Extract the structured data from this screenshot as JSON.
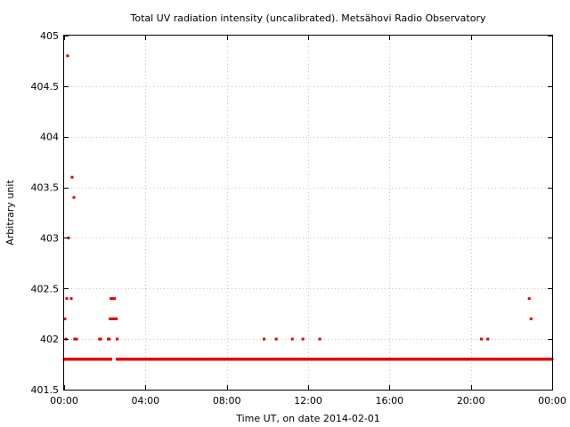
{
  "chart_data": {
    "type": "scatter",
    "title": "Total UV radiation intensity (uncalibrated). Metsähovi Radio Observatory",
    "xlabel": "Time UT, on date 2014-02-01",
    "ylabel": "Arbitrary unit",
    "xlim": [
      0,
      24
    ],
    "ylim": [
      401.5,
      405
    ],
    "xticks": [
      {
        "value": 0,
        "label": "00:00"
      },
      {
        "value": 4,
        "label": "04:00"
      },
      {
        "value": 8,
        "label": "08:00"
      },
      {
        "value": 12,
        "label": "12:00"
      },
      {
        "value": 16,
        "label": "16:00"
      },
      {
        "value": 20,
        "label": "20:00"
      },
      {
        "value": 24,
        "label": "00:00"
      }
    ],
    "yticks": [
      {
        "value": 401.5,
        "label": "401.5"
      },
      {
        "value": 402,
        "label": "402"
      },
      {
        "value": 402.5,
        "label": "402.5"
      },
      {
        "value": 403,
        "label": "403"
      },
      {
        "value": 403.5,
        "label": "403.5"
      },
      {
        "value": 404,
        "label": "404"
      },
      {
        "value": 404.5,
        "label": "404.5"
      },
      {
        "value": 405,
        "label": "405"
      }
    ],
    "grid": true,
    "marker_color": "#e00000",
    "baseline": {
      "y": 401.8,
      "x_ranges": [
        [
          0,
          2.3
        ],
        [
          2.6,
          24
        ]
      ],
      "step": 0.02
    },
    "points": [
      {
        "x": 0.04,
        "y": 402.2
      },
      {
        "x": 0.09,
        "y": 402
      },
      {
        "x": 0.13,
        "y": 402.4
      },
      {
        "x": 0.17,
        "y": 404.8
      },
      {
        "x": 0.22,
        "y": 403
      },
      {
        "x": 0.35,
        "y": 402.4
      },
      {
        "x": 0.39,
        "y": 403.6
      },
      {
        "x": 0.48,
        "y": 403.4
      },
      {
        "x": 0.52,
        "y": 402
      },
      {
        "x": 0.61,
        "y": 402
      },
      {
        "x": 1.74,
        "y": 402
      },
      {
        "x": 1.8,
        "y": 402
      },
      {
        "x": 2.17,
        "y": 402
      },
      {
        "x": 2.22,
        "y": 402
      },
      {
        "x": 2.26,
        "y": 402.2
      },
      {
        "x": 2.3,
        "y": 402.4
      },
      {
        "x": 2.35,
        "y": 402.2
      },
      {
        "x": 2.39,
        "y": 402.4
      },
      {
        "x": 2.43,
        "y": 402.2
      },
      {
        "x": 2.48,
        "y": 402.4
      },
      {
        "x": 2.52,
        "y": 402.2
      },
      {
        "x": 2.57,
        "y": 402.2
      },
      {
        "x": 2.61,
        "y": 402
      },
      {
        "x": 9.83,
        "y": 402
      },
      {
        "x": 10.43,
        "y": 402
      },
      {
        "x": 11.22,
        "y": 402
      },
      {
        "x": 11.74,
        "y": 402
      },
      {
        "x": 12.57,
        "y": 402
      },
      {
        "x": 20.52,
        "y": 402
      },
      {
        "x": 20.83,
        "y": 402
      },
      {
        "x": 22.87,
        "y": 402.4
      },
      {
        "x": 22.96,
        "y": 402.2
      }
    ]
  }
}
